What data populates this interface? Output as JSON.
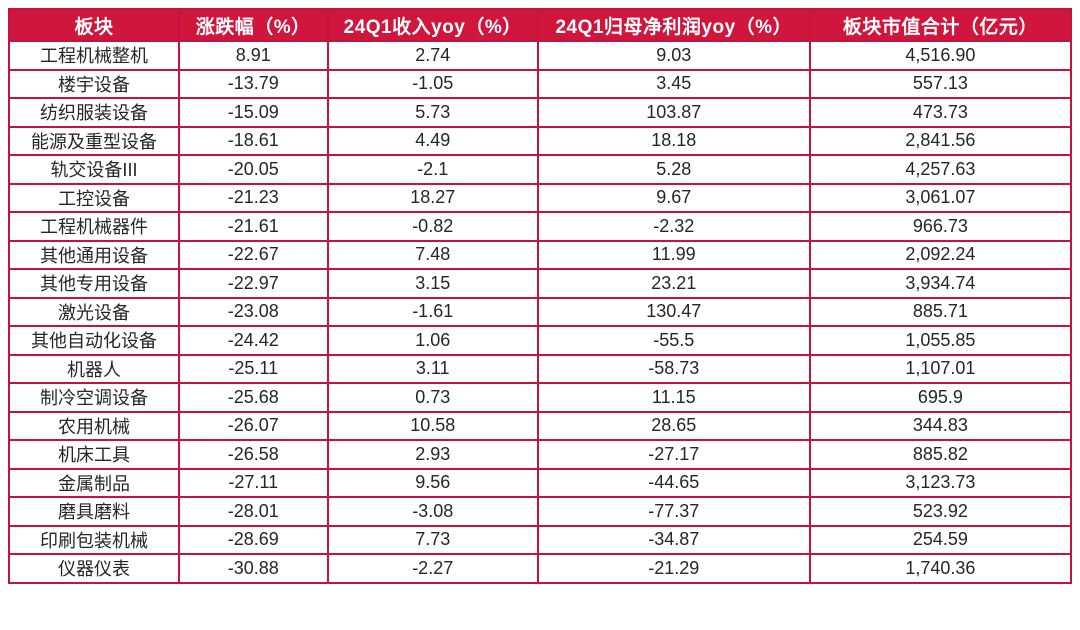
{
  "colors": {
    "header_bg": "#d0163c",
    "border": "#c21441",
    "cell_text": "#262626",
    "header_text": "#ffffff",
    "page_bg": "#ffffff"
  },
  "chart_data": {
    "type": "table",
    "title": "",
    "columns": [
      "板块",
      "涨跌幅（%）",
      "24Q1收入yoy（%）",
      "24Q1归母净利润yoy（%）",
      "板块市值合计（亿元）"
    ],
    "records": [
      {
        "sector": "工程机械整机",
        "change_pct": 8.91,
        "revenue_yoy_pct": 2.74,
        "net_profit_yoy_pct": 9.03,
        "market_cap_100m": 4516.9
      },
      {
        "sector": "楼宇设备",
        "change_pct": -13.79,
        "revenue_yoy_pct": -1.05,
        "net_profit_yoy_pct": 3.45,
        "market_cap_100m": 557.13
      },
      {
        "sector": "纺织服装设备",
        "change_pct": -15.09,
        "revenue_yoy_pct": 5.73,
        "net_profit_yoy_pct": 103.87,
        "market_cap_100m": 473.73
      },
      {
        "sector": "能源及重型设备",
        "change_pct": -18.61,
        "revenue_yoy_pct": 4.49,
        "net_profit_yoy_pct": 18.18,
        "market_cap_100m": 2841.56
      },
      {
        "sector": "轨交设备III",
        "change_pct": -20.05,
        "revenue_yoy_pct": -2.1,
        "net_profit_yoy_pct": 5.28,
        "market_cap_100m": 4257.63
      },
      {
        "sector": "工控设备",
        "change_pct": -21.23,
        "revenue_yoy_pct": 18.27,
        "net_profit_yoy_pct": 9.67,
        "market_cap_100m": 3061.07
      },
      {
        "sector": "工程机械器件",
        "change_pct": -21.61,
        "revenue_yoy_pct": -0.82,
        "net_profit_yoy_pct": -2.32,
        "market_cap_100m": 966.73
      },
      {
        "sector": "其他通用设备",
        "change_pct": -22.67,
        "revenue_yoy_pct": 7.48,
        "net_profit_yoy_pct": 11.99,
        "market_cap_100m": 2092.24
      },
      {
        "sector": "其他专用设备",
        "change_pct": -22.97,
        "revenue_yoy_pct": 3.15,
        "net_profit_yoy_pct": 23.21,
        "market_cap_100m": 3934.74
      },
      {
        "sector": "激光设备",
        "change_pct": -23.08,
        "revenue_yoy_pct": -1.61,
        "net_profit_yoy_pct": 130.47,
        "market_cap_100m": 885.71
      },
      {
        "sector": "其他自动化设备",
        "change_pct": -24.42,
        "revenue_yoy_pct": 1.06,
        "net_profit_yoy_pct": -55.5,
        "market_cap_100m": 1055.85
      },
      {
        "sector": "机器人",
        "change_pct": -25.11,
        "revenue_yoy_pct": 3.11,
        "net_profit_yoy_pct": -58.73,
        "market_cap_100m": 1107.01
      },
      {
        "sector": "制冷空调设备",
        "change_pct": -25.68,
        "revenue_yoy_pct": 0.73,
        "net_profit_yoy_pct": 11.15,
        "market_cap_100m": 695.9
      },
      {
        "sector": "农用机械",
        "change_pct": -26.07,
        "revenue_yoy_pct": 10.58,
        "net_profit_yoy_pct": 28.65,
        "market_cap_100m": 344.83
      },
      {
        "sector": "机床工具",
        "change_pct": -26.58,
        "revenue_yoy_pct": 2.93,
        "net_profit_yoy_pct": -27.17,
        "market_cap_100m": 885.82
      },
      {
        "sector": "金属制品",
        "change_pct": -27.11,
        "revenue_yoy_pct": 9.56,
        "net_profit_yoy_pct": -44.65,
        "market_cap_100m": 3123.73
      },
      {
        "sector": "磨具磨料",
        "change_pct": -28.01,
        "revenue_yoy_pct": -3.08,
        "net_profit_yoy_pct": -77.37,
        "market_cap_100m": 523.92
      },
      {
        "sector": "印刷包装机械",
        "change_pct": -28.69,
        "revenue_yoy_pct": 7.73,
        "net_profit_yoy_pct": -34.87,
        "market_cap_100m": 254.59
      },
      {
        "sector": "仪器仪表",
        "change_pct": -30.88,
        "revenue_yoy_pct": -2.27,
        "net_profit_yoy_pct": -21.29,
        "market_cap_100m": 1740.36
      }
    ]
  },
  "table": {
    "rows": [
      [
        "工程机械整机",
        "8.91",
        "2.74",
        "9.03",
        "4,516.90"
      ],
      [
        "楼宇设备",
        "-13.79",
        "-1.05",
        "3.45",
        "557.13"
      ],
      [
        "纺织服装设备",
        "-15.09",
        "5.73",
        "103.87",
        "473.73"
      ],
      [
        "能源及重型设备",
        "-18.61",
        "4.49",
        "18.18",
        "2,841.56"
      ],
      [
        "轨交设备III",
        "-20.05",
        "-2.1",
        "5.28",
        "4,257.63"
      ],
      [
        "工控设备",
        "-21.23",
        "18.27",
        "9.67",
        "3,061.07"
      ],
      [
        "工程机械器件",
        "-21.61",
        "-0.82",
        "-2.32",
        "966.73"
      ],
      [
        "其他通用设备",
        "-22.67",
        "7.48",
        "11.99",
        "2,092.24"
      ],
      [
        "其他专用设备",
        "-22.97",
        "3.15",
        "23.21",
        "3,934.74"
      ],
      [
        "激光设备",
        "-23.08",
        "-1.61",
        "130.47",
        "885.71"
      ],
      [
        "其他自动化设备",
        "-24.42",
        "1.06",
        "-55.5",
        "1,055.85"
      ],
      [
        "机器人",
        "-25.11",
        "3.11",
        "-58.73",
        "1,107.01"
      ],
      [
        "制冷空调设备",
        "-25.68",
        "0.73",
        "11.15",
        "695.9"
      ],
      [
        "农用机械",
        "-26.07",
        "10.58",
        "28.65",
        "344.83"
      ],
      [
        "机床工具",
        "-26.58",
        "2.93",
        "-27.17",
        "885.82"
      ],
      [
        "金属制品",
        "-27.11",
        "9.56",
        "-44.65",
        "3,123.73"
      ],
      [
        "磨具磨料",
        "-28.01",
        "-3.08",
        "-77.37",
        "523.92"
      ],
      [
        "印刷包装机械",
        "-28.69",
        "7.73",
        "-34.87",
        "254.59"
      ],
      [
        "仪器仪表",
        "-30.88",
        "-2.27",
        "-21.29",
        "1,740.36"
      ]
    ]
  }
}
